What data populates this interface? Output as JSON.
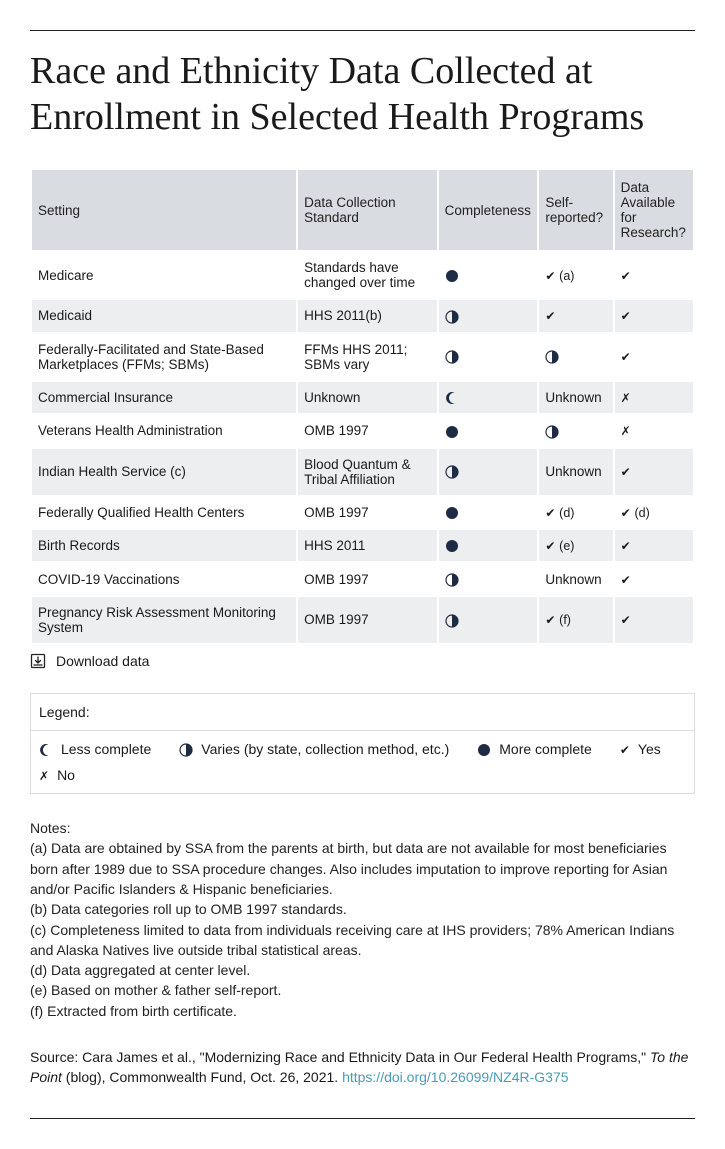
{
  "title": "Race and Ethnicity Data Collected at Enrollment in Selected Health Programs",
  "columns": [
    "Setting",
    "Data Collection Standard",
    "Completeness",
    "Self-reported?",
    "Data Available for Research?"
  ],
  "icons": {
    "full_color": "#1d2b44",
    "half_color": "#1d2b44",
    "crescent_color": "#1d2b44"
  },
  "rows": [
    {
      "setting": "Medicare",
      "standard": "Standards have changed over time",
      "completeness": "full",
      "self": {
        "type": "check",
        "note": "(a)"
      },
      "avail": {
        "type": "check"
      }
    },
    {
      "setting": "Medicaid",
      "standard": "HHS 2011(b)",
      "completeness": "half",
      "self": {
        "type": "check"
      },
      "avail": {
        "type": "check"
      }
    },
    {
      "setting": "Federally-Facilitated and State-Based Marketplaces (FFMs; SBMs)",
      "standard": "FFMs HHS 2011; SBMs vary",
      "completeness": "half",
      "self": {
        "type": "half"
      },
      "avail": {
        "type": "check"
      }
    },
    {
      "setting": "Commercial Insurance",
      "standard": "Unknown",
      "completeness": "crescent",
      "self": {
        "type": "text",
        "text": "Unknown"
      },
      "avail": {
        "type": "cross"
      }
    },
    {
      "setting": "Veterans Health Administration",
      "standard": "OMB 1997",
      "completeness": "full",
      "self": {
        "type": "half"
      },
      "avail": {
        "type": "cross"
      }
    },
    {
      "setting": "Indian Health Service (c)",
      "standard": "Blood Quantum & Tribal Affiliation",
      "completeness": "half",
      "self": {
        "type": "text",
        "text": "Unknown"
      },
      "avail": {
        "type": "check"
      }
    },
    {
      "setting": "Federally Qualified Health Centers",
      "standard": "OMB 1997",
      "completeness": "full",
      "self": {
        "type": "check",
        "note": "(d)"
      },
      "avail": {
        "type": "check",
        "note": "(d)"
      }
    },
    {
      "setting": "Birth Records",
      "standard": "HHS 2011",
      "completeness": "full",
      "self": {
        "type": "check",
        "note": "(e)"
      },
      "avail": {
        "type": "check"
      }
    },
    {
      "setting": "COVID-19 Vaccinations",
      "standard": "OMB 1997",
      "completeness": "half",
      "self": {
        "type": "text",
        "text": "Unknown"
      },
      "avail": {
        "type": "check"
      }
    },
    {
      "setting": "Pregnancy Risk Assessment Monitoring System",
      "standard": "OMB 1997",
      "completeness": "half",
      "self": {
        "type": "check",
        "note": "(f)"
      },
      "avail": {
        "type": "check"
      }
    }
  ],
  "download_label": "Download data",
  "legend": {
    "title": "Legend:",
    "items": [
      {
        "icon": "crescent",
        "label": "Less complete"
      },
      {
        "icon": "half",
        "label": "Varies (by state, collection method, etc.)"
      },
      {
        "icon": "full",
        "label": "More complete"
      },
      {
        "icon": "check",
        "label": "Yes"
      },
      {
        "icon": "cross",
        "label": "No"
      }
    ]
  },
  "notes_title": "Notes:",
  "notes": [
    "(a) Data are obtained by SSA from the parents at birth, but data are not available for most beneficiaries born after 1989 due to SSA procedure changes. Also includes imputation to improve reporting for Asian and/or Pacific Islanders & Hispanic beneficiaries.",
    "(b) Data categories roll up to OMB 1997 standards.",
    "(c) Completeness limited to data from individuals receiving care at IHS providers; 78% American Indians and Alaska Natives live outside tribal statistical areas.",
    "(d) Data aggregated at center level.",
    "(e) Based on mother & father self-report.",
    "(f) Extracted from birth certificate."
  ],
  "source": {
    "prefix": "Source:  Cara James et al., \"Modernizing Race and Ethnicity Data in Our Federal Health Programs,\" ",
    "italic": "To the Point",
    "suffix": " (blog), Commonwealth Fund, Oct. 26, 2021. ",
    "link_text": "https://doi.org/10.26099/NZ4R-G375"
  }
}
